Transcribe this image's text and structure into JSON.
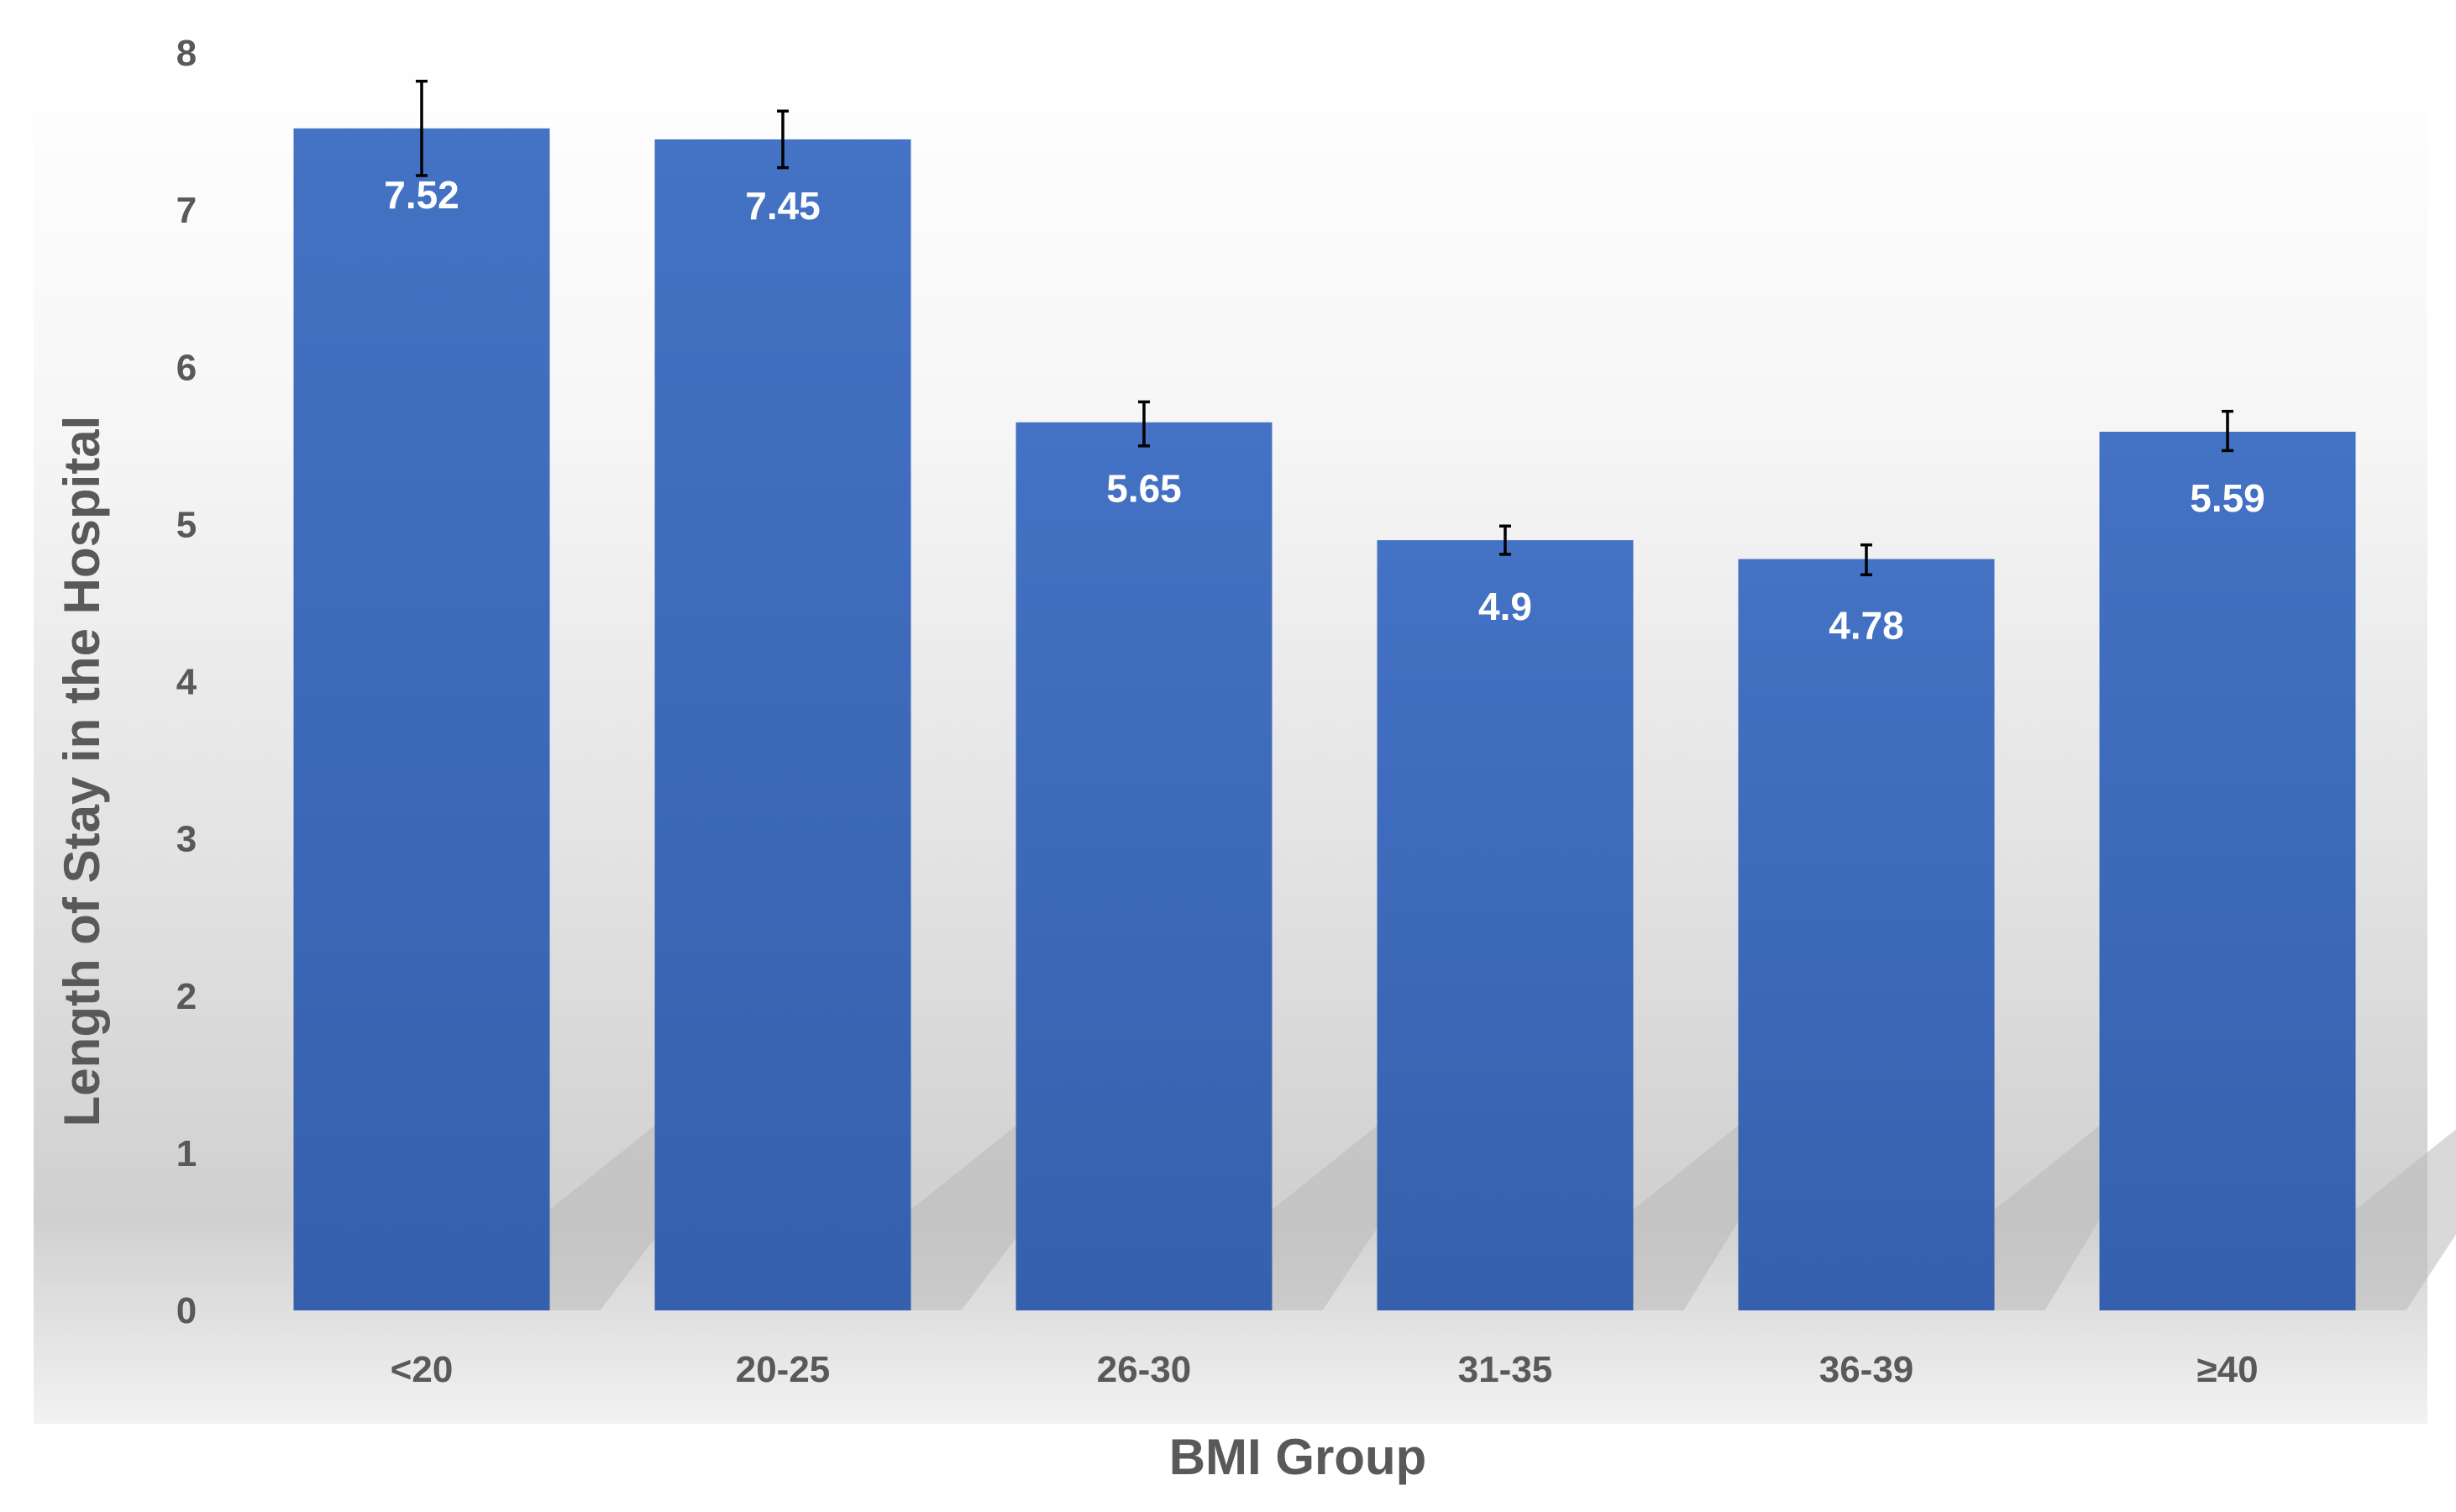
{
  "chart_data": {
    "type": "bar",
    "categories": [
      "<20",
      "20-25",
      "26-30",
      "31-35",
      "36-39",
      "≥40"
    ],
    "values": [
      7.52,
      7.45,
      5.65,
      4.9,
      4.78,
      5.59
    ],
    "data_labels": [
      "7.52",
      "7.45",
      "5.65",
      "4.9",
      "4.78",
      "5.59"
    ],
    "error_bars": [
      [
        7.22,
        7.82
      ],
      [
        7.27,
        7.63
      ],
      [
        5.5,
        5.78
      ],
      [
        4.81,
        4.99
      ],
      [
        4.68,
        4.87
      ],
      [
        5.47,
        5.72
      ]
    ],
    "xlabel": "BMI Group",
    "ylabel": "Length of Stay in the Hospital",
    "ylim": [
      0,
      8
    ],
    "yticks": [
      "0",
      "1",
      "2",
      "3",
      "4",
      "5",
      "6",
      "7",
      "8"
    ],
    "grid": false,
    "legend": "none",
    "colors": {
      "bar_top": "#4472c4",
      "bar_bottom": "#3560ad",
      "text": "#595959",
      "label": "#ffffff"
    }
  }
}
